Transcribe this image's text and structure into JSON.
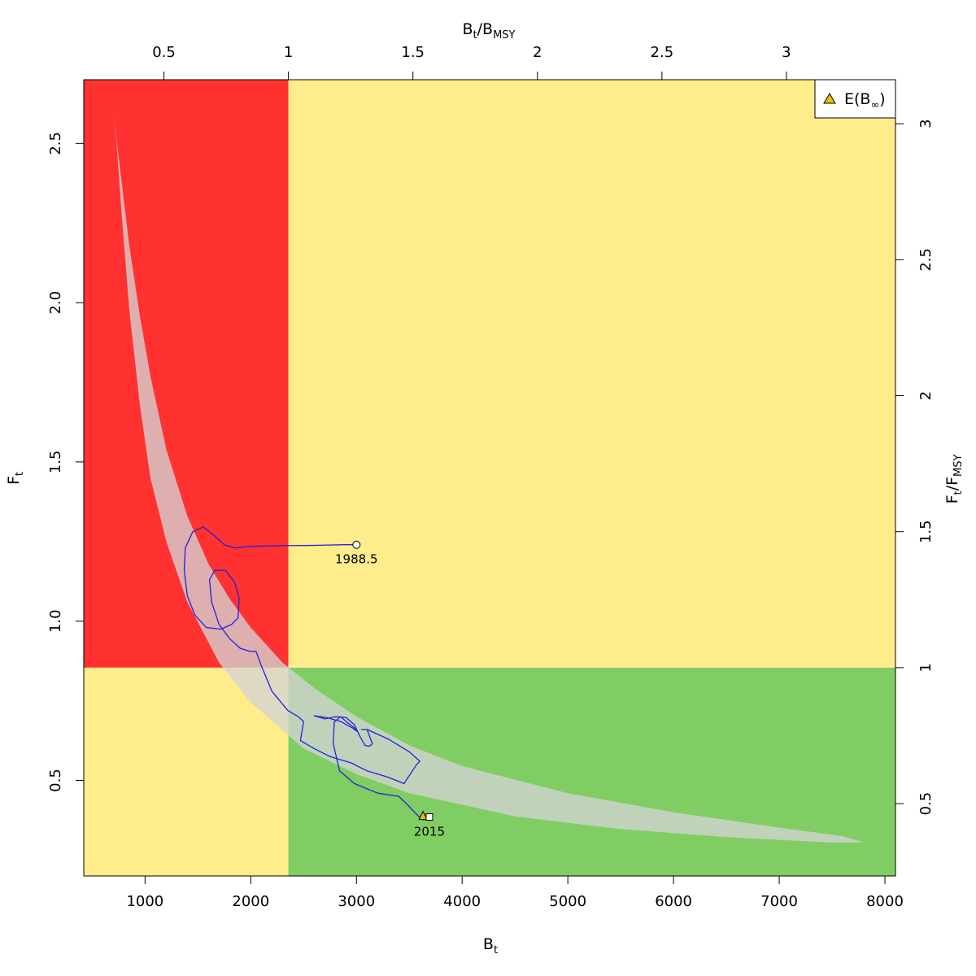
{
  "chart_data": {
    "type": "line",
    "axes": {
      "bottom": {
        "label": "B",
        "label_sub": "t",
        "range": [
          420,
          8100
        ],
        "ticks": [
          1000,
          2000,
          3000,
          4000,
          5000,
          6000,
          7000,
          8000
        ]
      },
      "left": {
        "label": "F",
        "label_sub": "t",
        "range": [
          0.2,
          2.7
        ],
        "ticks": [
          0.5,
          1.0,
          1.5,
          2.0,
          2.5
        ],
        "tick_labels": [
          "0.5",
          "1.0",
          "1.5",
          "2.0",
          "2.5"
        ]
      },
      "top": {
        "label": "B",
        "label_sub": "t",
        "label_sep": "/",
        "label2": "B",
        "label2_sub": "MSY",
        "range": [
          0.178,
          3.438
        ],
        "ticks": [
          0.5,
          1,
          1.5,
          2,
          2.5,
          3
        ],
        "tick_labels": [
          "0.5",
          "1",
          "1.5",
          "2",
          "2.5",
          "3"
        ]
      },
      "right": {
        "label": "F",
        "label_sub": "t",
        "label_sep": "/",
        "label2": "F",
        "label2_sub": "MSY",
        "range": [
          0.234,
          3.162
        ],
        "ticks": [
          0.5,
          1,
          1.5,
          2,
          2.5,
          3
        ],
        "tick_labels": [
          "0.5",
          "1",
          "1.5",
          "2",
          "2.5",
          "3"
        ]
      }
    },
    "reference_points": {
      "Bmsy": 2356,
      "Fmsy": 0.854
    },
    "zones": [
      {
        "name": "overfished-overfishing",
        "color": "#ff3131",
        "x": [
          420,
          2356
        ],
        "y": [
          0.854,
          2.7
        ]
      },
      {
        "name": "healthy-overfishing",
        "color": "#ffec8b",
        "x": [
          2356,
          8100
        ],
        "y": [
          0.854,
          2.7
        ]
      },
      {
        "name": "overfished-sustainable",
        "color": "#ffec8b",
        "x": [
          420,
          2356
        ],
        "y": [
          0.2,
          0.854
        ]
      },
      {
        "name": "healthy-sustainable",
        "color": "#80cd63",
        "x": [
          2356,
          8100
        ],
        "y": [
          0.2,
          0.854
        ]
      }
    ],
    "confidence_region": {
      "color": "#d3d3d3",
      "outer": [
        [
          700,
          2.6
        ],
        [
          760,
          2.43
        ],
        [
          850,
          2.18
        ],
        [
          950,
          1.96
        ],
        [
          1050,
          1.77
        ],
        [
          1200,
          1.54
        ],
        [
          1400,
          1.33
        ],
        [
          1600,
          1.18
        ],
        [
          1800,
          1.07
        ],
        [
          2000,
          0.98
        ],
        [
          2300,
          0.87
        ],
        [
          2600,
          0.79
        ],
        [
          3000,
          0.7
        ],
        [
          3500,
          0.61
        ],
        [
          4000,
          0.545
        ],
        [
          5000,
          0.46
        ],
        [
          6000,
          0.4
        ],
        [
          7000,
          0.352
        ],
        [
          7600,
          0.325
        ],
        [
          7800,
          0.305
        ]
      ],
      "inner": [
        [
          7500,
          0.305
        ],
        [
          6500,
          0.322
        ],
        [
          5500,
          0.347
        ],
        [
          4500,
          0.387
        ],
        [
          3500,
          0.46
        ],
        [
          3000,
          0.52
        ],
        [
          2500,
          0.6
        ],
        [
          2000,
          0.745
        ],
        [
          1700,
          0.87
        ],
        [
          1400,
          1.06
        ],
        [
          1200,
          1.25
        ],
        [
          1050,
          1.45
        ],
        [
          950,
          1.68
        ],
        [
          850,
          1.98
        ],
        [
          780,
          2.27
        ],
        [
          730,
          2.5
        ],
        [
          700,
          2.6
        ]
      ]
    },
    "series": [
      {
        "color": "#2222dd",
        "x": [
          3000,
          2900,
          2600,
          2300,
          2000,
          1850,
          1750,
          1650,
          1550,
          1450,
          1380,
          1370,
          1400,
          1470,
          1580,
          1720,
          1820,
          1880,
          1890,
          1850,
          1760,
          1660,
          1610,
          1630,
          1700,
          1800,
          1900,
          1990,
          2050,
          2100,
          2200,
          2350,
          2450,
          2500,
          2470,
          2600,
          2750,
          2950,
          3100,
          3300,
          3450,
          3570,
          3600,
          3500,
          3300,
          3100,
          3050,
          3100,
          3150,
          3120,
          3080,
          3030,
          2980,
          2900,
          2800,
          2700,
          2600,
          2720,
          2850,
          2960,
          3000,
          2980,
          2920,
          2850,
          2790,
          2780,
          2840,
          2980,
          3200,
          3400,
          3480,
          3550,
          3610,
          3640
        ],
        "y": [
          1.24,
          1.24,
          1.238,
          1.237,
          1.235,
          1.23,
          1.24,
          1.27,
          1.296,
          1.28,
          1.23,
          1.16,
          1.08,
          1.02,
          0.98,
          0.975,
          0.99,
          1.01,
          1.07,
          1.12,
          1.16,
          1.16,
          1.13,
          1.06,
          0.99,
          0.945,
          0.915,
          0.905,
          0.905,
          0.86,
          0.78,
          0.72,
          0.7,
          0.685,
          0.625,
          0.6,
          0.575,
          0.555,
          0.53,
          0.51,
          0.49,
          0.55,
          0.56,
          0.59,
          0.63,
          0.66,
          0.66,
          0.66,
          0.615,
          0.607,
          0.61,
          0.64,
          0.675,
          0.698,
          0.7,
          0.693,
          0.703,
          0.697,
          0.685,
          0.665,
          0.655,
          0.665,
          0.68,
          0.7,
          0.684,
          0.616,
          0.53,
          0.49,
          0.46,
          0.45,
          0.425,
          0.4,
          0.38,
          0.375
        ]
      }
    ],
    "annotations": [
      {
        "text": "1988.5",
        "x": 3000,
        "y": 1.24,
        "marker": "circle"
      },
      {
        "text": "2015",
        "x": 3690,
        "y": 0.385,
        "marker": "square"
      }
    ],
    "expected_point": {
      "x": 3630,
      "y": 0.39,
      "color": "#e6c200"
    },
    "legend": {
      "placement": "top-right",
      "entries": [
        {
          "text": "E(B",
          "sub": "∞",
          "close": ")",
          "marker": "triangle",
          "color": "#e6c200"
        }
      ]
    }
  }
}
